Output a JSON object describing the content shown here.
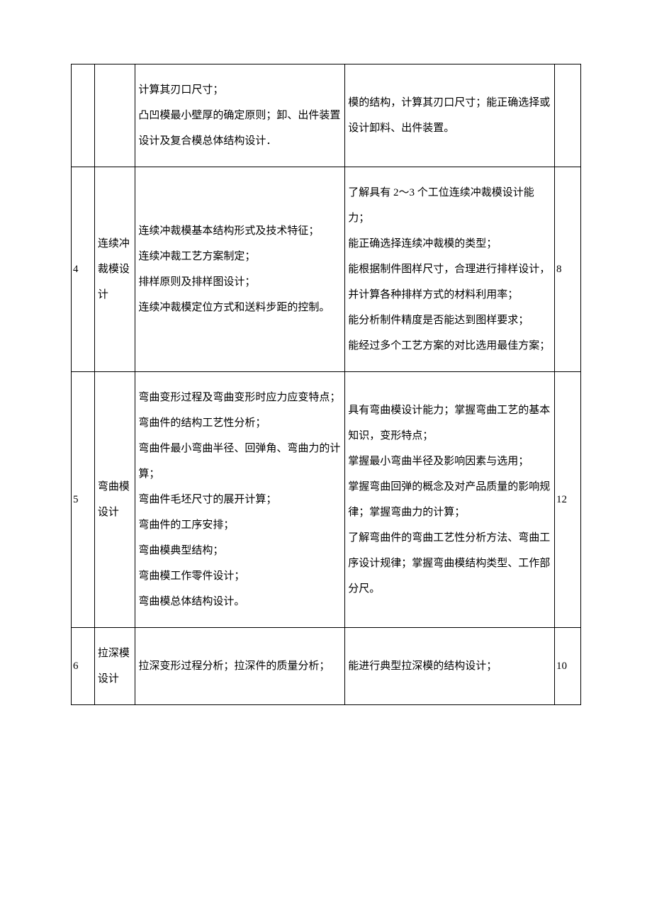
{
  "table": {
    "rows": [
      {
        "num": "",
        "title": "",
        "content": "计算其刃口尺寸；\n凸凹模最小壁厚的确定原则；卸、出件装置设计及复合模总体结构设计．",
        "ability": "模的结构，计算其刃口尺寸；能正确选择或设计卸料、出件装置。",
        "hours": ""
      },
      {
        "num": "4",
        "title": "连续冲裁模设计",
        "content": "连续冲裁模基本结构形式及技术特征；\n连续冲裁工艺方案制定；\n排样原则及排样图设计；\n连续冲裁模定位方式和送料步距的控制。",
        "ability": "了解具有 2～3 个工位连续冲裁模设计能力；\n能正确选择连续冲裁模的类型；\n能根据制件图样尺寸，合理进行排样设计，并计算各种排样方式的材料利用率；\n能分析制件精度是否能达到图样要求；\n能经过多个工艺方案的对比选用最佳方案；",
        "hours": "8"
      },
      {
        "num": "5",
        "title": "弯曲模设计",
        "content": "弯曲变形过程及弯曲变形时应力应变特点；\n弯曲件的结构工艺性分析；\n弯曲件最小弯曲半径、回弹角、弯曲力的计算；\n弯曲件毛坯尺寸的展开计算；\n弯曲件的工序安排；\n弯曲模典型结构；\n弯曲模工作零件设计；\n弯曲模总体结构设计。",
        "ability": "具有弯曲模设计能力；掌握弯曲工艺的基本知识，变形特点；\n掌握最小弯曲半径及影响因素与选用；\n掌握弯曲回弹的概念及对产品质量的影响规律；掌握弯曲力的计算；\n了解弯曲件的弯曲工艺性分析方法、弯曲工序设计规律；掌握弯曲模结构类型、工作部分尺。",
        "hours": "12"
      },
      {
        "num": "6",
        "title": "拉深模设计",
        "content": "拉深变形过程分析；拉深件的质量分析；",
        "ability": "能进行典型拉深模的结构设计；",
        "hours": "10"
      }
    ]
  },
  "styles": {
    "background_color": "#ffffff",
    "border_color": "#000000",
    "text_color": "#000000",
    "font_size": 15,
    "line_height": 2.4,
    "col_widths": {
      "num": 32,
      "title": 56,
      "content": 288,
      "ability": 288,
      "hours": 36
    }
  }
}
